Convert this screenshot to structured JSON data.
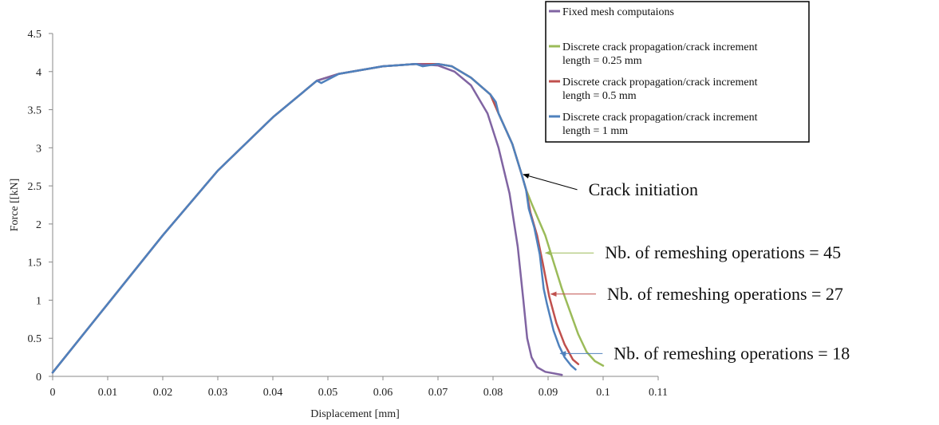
{
  "chart_data": {
    "type": "line",
    "xlabel": "Displacement [mm]",
    "ylabel": "Force [[kN]",
    "xlim": [
      0,
      0.11
    ],
    "ylim": [
      0,
      4.5
    ],
    "x_ticks": [
      "0",
      "0.01",
      "0.02",
      "0.03",
      "0.04",
      "0.05",
      "0.06",
      "0.07",
      "0.08",
      "0.09",
      "0.1",
      "0.11"
    ],
    "y_ticks": [
      "0",
      "0.5",
      "1",
      "1.5",
      "2",
      "2.5",
      "3",
      "3.5",
      "4",
      "4.5"
    ],
    "grid": false,
    "legend_position": "top-right",
    "series": [
      {
        "name": "Fixed mesh computaions",
        "color": "#8064A2",
        "points": [
          [
            0,
            0.05
          ],
          [
            0.01,
            0.95
          ],
          [
            0.02,
            1.85
          ],
          [
            0.03,
            2.7
          ],
          [
            0.04,
            3.4
          ],
          [
            0.048,
            3.88
          ],
          [
            0.052,
            3.97
          ],
          [
            0.06,
            4.07
          ],
          [
            0.066,
            4.1
          ],
          [
            0.07,
            4.08
          ],
          [
            0.073,
            4.0
          ],
          [
            0.076,
            3.82
          ],
          [
            0.079,
            3.45
          ],
          [
            0.081,
            3.0
          ],
          [
            0.083,
            2.4
          ],
          [
            0.0845,
            1.7
          ],
          [
            0.0855,
            1.0
          ],
          [
            0.0862,
            0.5
          ],
          [
            0.087,
            0.25
          ],
          [
            0.088,
            0.12
          ],
          [
            0.0895,
            0.06
          ],
          [
            0.0925,
            0.02
          ]
        ]
      },
      {
        "name": "Discrete crack propagation/crack increment length = 0.25 mm",
        "color": "#9BBB59",
        "points": [
          [
            0,
            0.05
          ],
          [
            0.01,
            0.95
          ],
          [
            0.02,
            1.85
          ],
          [
            0.03,
            2.7
          ],
          [
            0.04,
            3.4
          ],
          [
            0.048,
            3.88
          ],
          [
            0.052,
            3.97
          ],
          [
            0.06,
            4.07
          ],
          [
            0.066,
            4.1
          ],
          [
            0.07,
            4.1
          ],
          [
            0.0725,
            4.07
          ],
          [
            0.076,
            3.92
          ],
          [
            0.0795,
            3.7
          ],
          [
            0.081,
            3.45
          ],
          [
            0.0835,
            3.05
          ],
          [
            0.0852,
            2.65
          ],
          [
            0.086,
            2.45
          ],
          [
            0.087,
            2.27
          ],
          [
            0.088,
            2.1
          ],
          [
            0.0895,
            1.85
          ],
          [
            0.091,
            1.5
          ],
          [
            0.0925,
            1.15
          ],
          [
            0.094,
            0.85
          ],
          [
            0.0955,
            0.55
          ],
          [
            0.097,
            0.32
          ],
          [
            0.0985,
            0.2
          ],
          [
            0.1,
            0.14
          ]
        ]
      },
      {
        "name": "Discrete crack propagation/crack increment length = 0.5 mm",
        "color": "#C0504D",
        "points": [
          [
            0,
            0.05
          ],
          [
            0.01,
            0.95
          ],
          [
            0.02,
            1.85
          ],
          [
            0.03,
            2.7
          ],
          [
            0.04,
            3.4
          ],
          [
            0.048,
            3.88
          ],
          [
            0.052,
            3.97
          ],
          [
            0.06,
            4.07
          ],
          [
            0.066,
            4.1
          ],
          [
            0.07,
            4.1
          ],
          [
            0.0725,
            4.07
          ],
          [
            0.076,
            3.92
          ],
          [
            0.0795,
            3.7
          ],
          [
            0.081,
            3.45
          ],
          [
            0.0835,
            3.05
          ],
          [
            0.0852,
            2.65
          ],
          [
            0.086,
            2.45
          ],
          [
            0.0868,
            2.15
          ],
          [
            0.088,
            1.85
          ],
          [
            0.089,
            1.5
          ],
          [
            0.0902,
            1.05
          ],
          [
            0.0915,
            0.7
          ],
          [
            0.093,
            0.42
          ],
          [
            0.0945,
            0.22
          ],
          [
            0.0955,
            0.16
          ]
        ]
      },
      {
        "name": "Discrete crack propagation/crack increment length = 1 mm",
        "color": "#4F81BD",
        "points": [
          [
            0,
            0.05
          ],
          [
            0.01,
            0.95
          ],
          [
            0.02,
            1.85
          ],
          [
            0.03,
            2.7
          ],
          [
            0.04,
            3.4
          ],
          [
            0.048,
            3.88
          ],
          [
            0.0488,
            3.85
          ],
          [
            0.052,
            3.97
          ],
          [
            0.06,
            4.07
          ],
          [
            0.066,
            4.1
          ],
          [
            0.0672,
            4.07
          ],
          [
            0.07,
            4.1
          ],
          [
            0.0725,
            4.07
          ],
          [
            0.076,
            3.92
          ],
          [
            0.0795,
            3.7
          ],
          [
            0.0805,
            3.6
          ],
          [
            0.081,
            3.45
          ],
          [
            0.0835,
            3.05
          ],
          [
            0.0852,
            2.65
          ],
          [
            0.086,
            2.45
          ],
          [
            0.0865,
            2.2
          ],
          [
            0.0875,
            1.95
          ],
          [
            0.0885,
            1.6
          ],
          [
            0.0892,
            1.15
          ],
          [
            0.0898,
            0.95
          ],
          [
            0.091,
            0.6
          ],
          [
            0.092,
            0.4
          ],
          [
            0.093,
            0.25
          ],
          [
            0.0942,
            0.14
          ],
          [
            0.095,
            0.09
          ]
        ]
      }
    ],
    "annotations": [
      {
        "text": "Crack initiation",
        "color": "#000000",
        "target": [
          0.0855,
          2.65
        ],
        "text_anchor": [
          0.0953,
          2.45
        ]
      },
      {
        "text": "Nb. of remeshing operations = 45",
        "color": "#9BBB59",
        "target": [
          0.0895,
          1.62
        ],
        "text_anchor": [
          0.0983,
          1.62
        ]
      },
      {
        "text": "Nb. of remeshing operations = 27",
        "color": "#C0504D",
        "target": [
          0.0905,
          1.08
        ],
        "text_anchor": [
          0.0987,
          1.08
        ]
      },
      {
        "text": "Nb. of remeshing operations = 18",
        "color": "#4F81BD",
        "target": [
          0.0922,
          0.3
        ],
        "text_anchor": [
          0.0999,
          0.3
        ]
      }
    ]
  }
}
